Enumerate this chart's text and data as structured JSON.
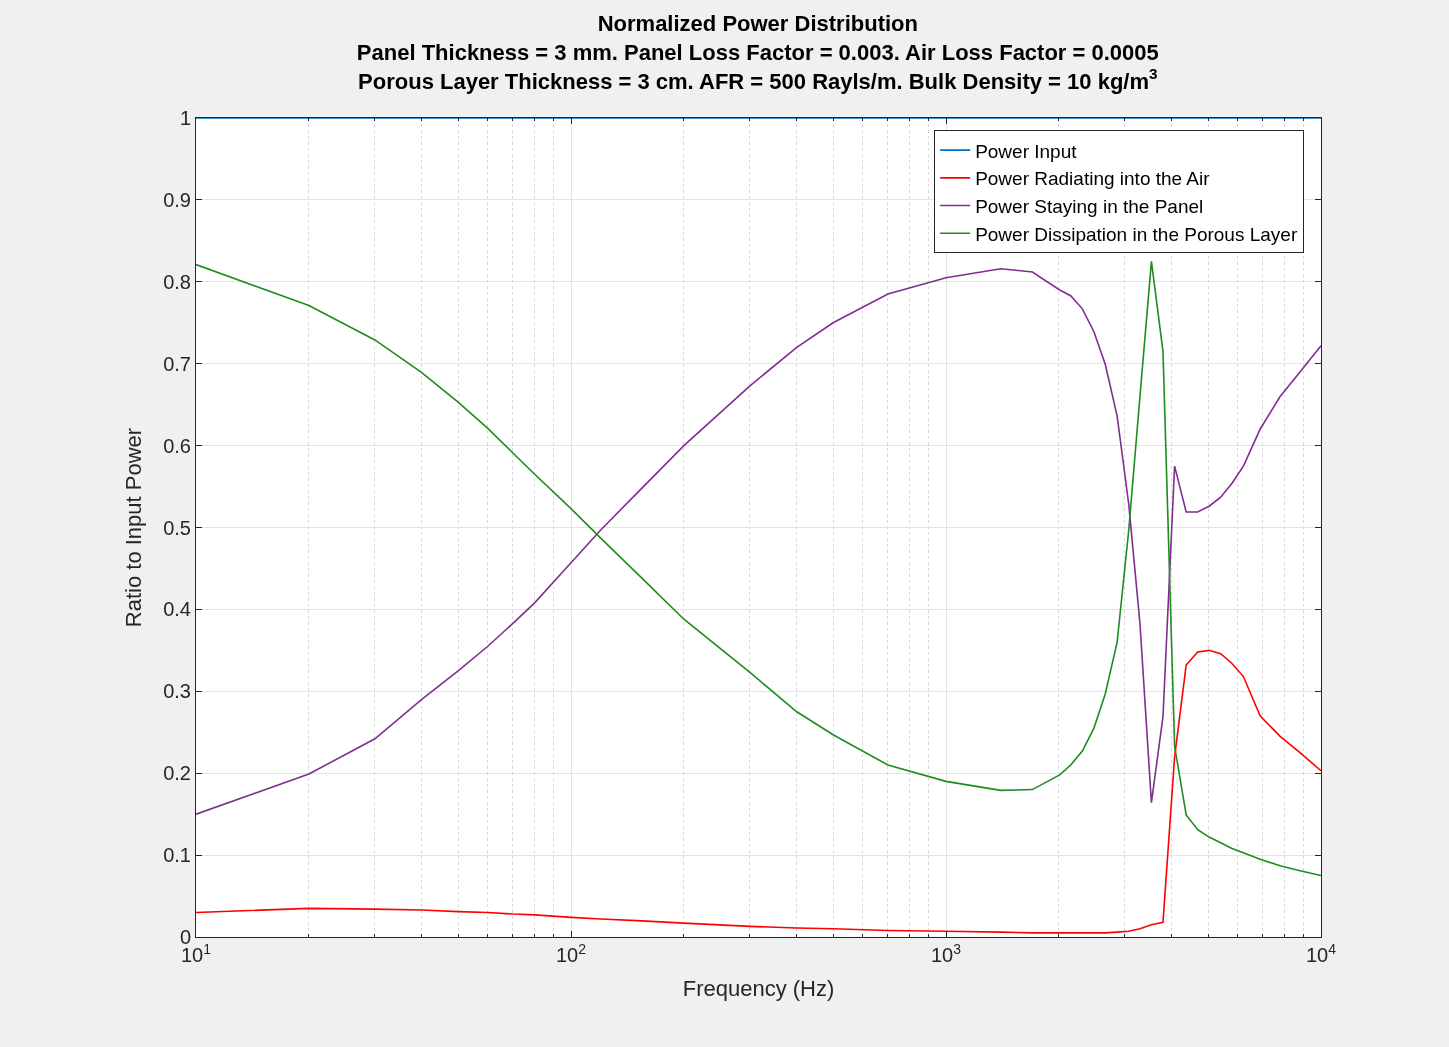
{
  "chart_data": {
    "type": "line",
    "title": "Normalized Power Distribution",
    "subtitle": "Panel Thickness = 3 mm. Panel Loss Factor = 0.003. Air Loss Factor = 0.0005\nPorous Layer Thickness = 3 cm. AFR = 500 Rayls/m. Bulk Density = 10 kg/m$^{3}$",
    "xlabel": "Frequency (Hz)",
    "ylabel": "Ratio to Input Power",
    "x": [
      10,
      20,
      30,
      40,
      50,
      60,
      70,
      80,
      100,
      120,
      150,
      200,
      300,
      400,
      500,
      700,
      1000,
      1400,
      1700,
      2010,
      2150,
      2310,
      2480,
      2660,
      2860,
      3070,
      3290,
      3530,
      3790,
      4070,
      4370,
      4690,
      5030,
      5400,
      5790,
      6210,
      6880,
      7780,
      8790,
      10000
    ],
    "series": [
      {
        "name": "Power Input",
        "color": "#0072bd",
        "values": [
          1,
          1,
          1,
          1,
          1,
          1,
          1,
          1,
          1,
          1,
          1,
          1,
          1,
          1,
          1,
          1,
          1,
          1,
          1,
          1,
          1,
          1,
          1,
          1,
          1,
          1,
          1,
          1,
          1,
          1,
          1,
          1,
          1,
          1,
          1,
          1,
          1,
          1,
          1,
          1
        ]
      },
      {
        "name": "Power Radiating into the Air",
        "color": "#ff0000",
        "values": [
          0.03,
          0.035,
          0.034,
          0.033,
          0.031,
          0.03,
          0.028,
          0.027,
          0.024,
          0.022,
          0.02,
          0.017,
          0.013,
          0.011,
          0.01,
          0.008,
          0.007,
          0.006,
          0.005,
          0.005,
          0.005,
          0.005,
          0.005,
          0.005,
          0.006,
          0.007,
          0.01,
          0.015,
          0.018,
          0.22,
          0.332,
          0.348,
          0.35,
          0.346,
          0.334,
          0.318,
          0.27,
          0.245,
          0.225,
          0.203
        ]
      },
      {
        "name": "Power Staying in the Panel",
        "color": "#7e2f8e",
        "values": [
          0.15,
          0.199,
          0.242,
          0.29,
          0.325,
          0.355,
          0.383,
          0.408,
          0.457,
          0.497,
          0.542,
          0.6,
          0.673,
          0.72,
          0.75,
          0.785,
          0.805,
          0.816,
          0.812,
          0.79,
          0.783,
          0.767,
          0.739,
          0.699,
          0.636,
          0.529,
          0.383,
          0.164,
          0.269,
          0.575,
          0.519,
          0.519,
          0.526,
          0.537,
          0.554,
          0.575,
          0.62,
          0.66,
          0.69,
          0.722
        ]
      },
      {
        "name": "Power Dissipation in the Porous Layer",
        "color": "#1e8c1e",
        "values": [
          0.821,
          0.771,
          0.729,
          0.689,
          0.653,
          0.621,
          0.591,
          0.565,
          0.523,
          0.487,
          0.444,
          0.388,
          0.323,
          0.275,
          0.247,
          0.21,
          0.19,
          0.179,
          0.18,
          0.198,
          0.21,
          0.227,
          0.255,
          0.297,
          0.36,
          0.496,
          0.66,
          0.825,
          0.715,
          0.233,
          0.149,
          0.131,
          0.122,
          0.115,
          0.108,
          0.103,
          0.095,
          0.087,
          0.081,
          0.075
        ]
      }
    ],
    "log": "x",
    "xlim": [
      10,
      10000
    ],
    "ylim": [
      0,
      1
    ],
    "xticks": [
      {
        "value": 10,
        "label": "10$^{1}$"
      },
      {
        "value": 100,
        "label": "10$^{2}$"
      },
      {
        "value": 1000,
        "label": "10$^{3}$"
      },
      {
        "value": 10000,
        "label": "10$^{4}$"
      }
    ],
    "yticks": [
      0,
      0.1,
      0.2,
      0.3,
      0.4,
      0.5,
      0.6,
      0.7,
      0.8,
      0.9,
      1
    ],
    "grid": true,
    "legend": "top right",
    "line_style": "solid",
    "marker": "none"
  }
}
